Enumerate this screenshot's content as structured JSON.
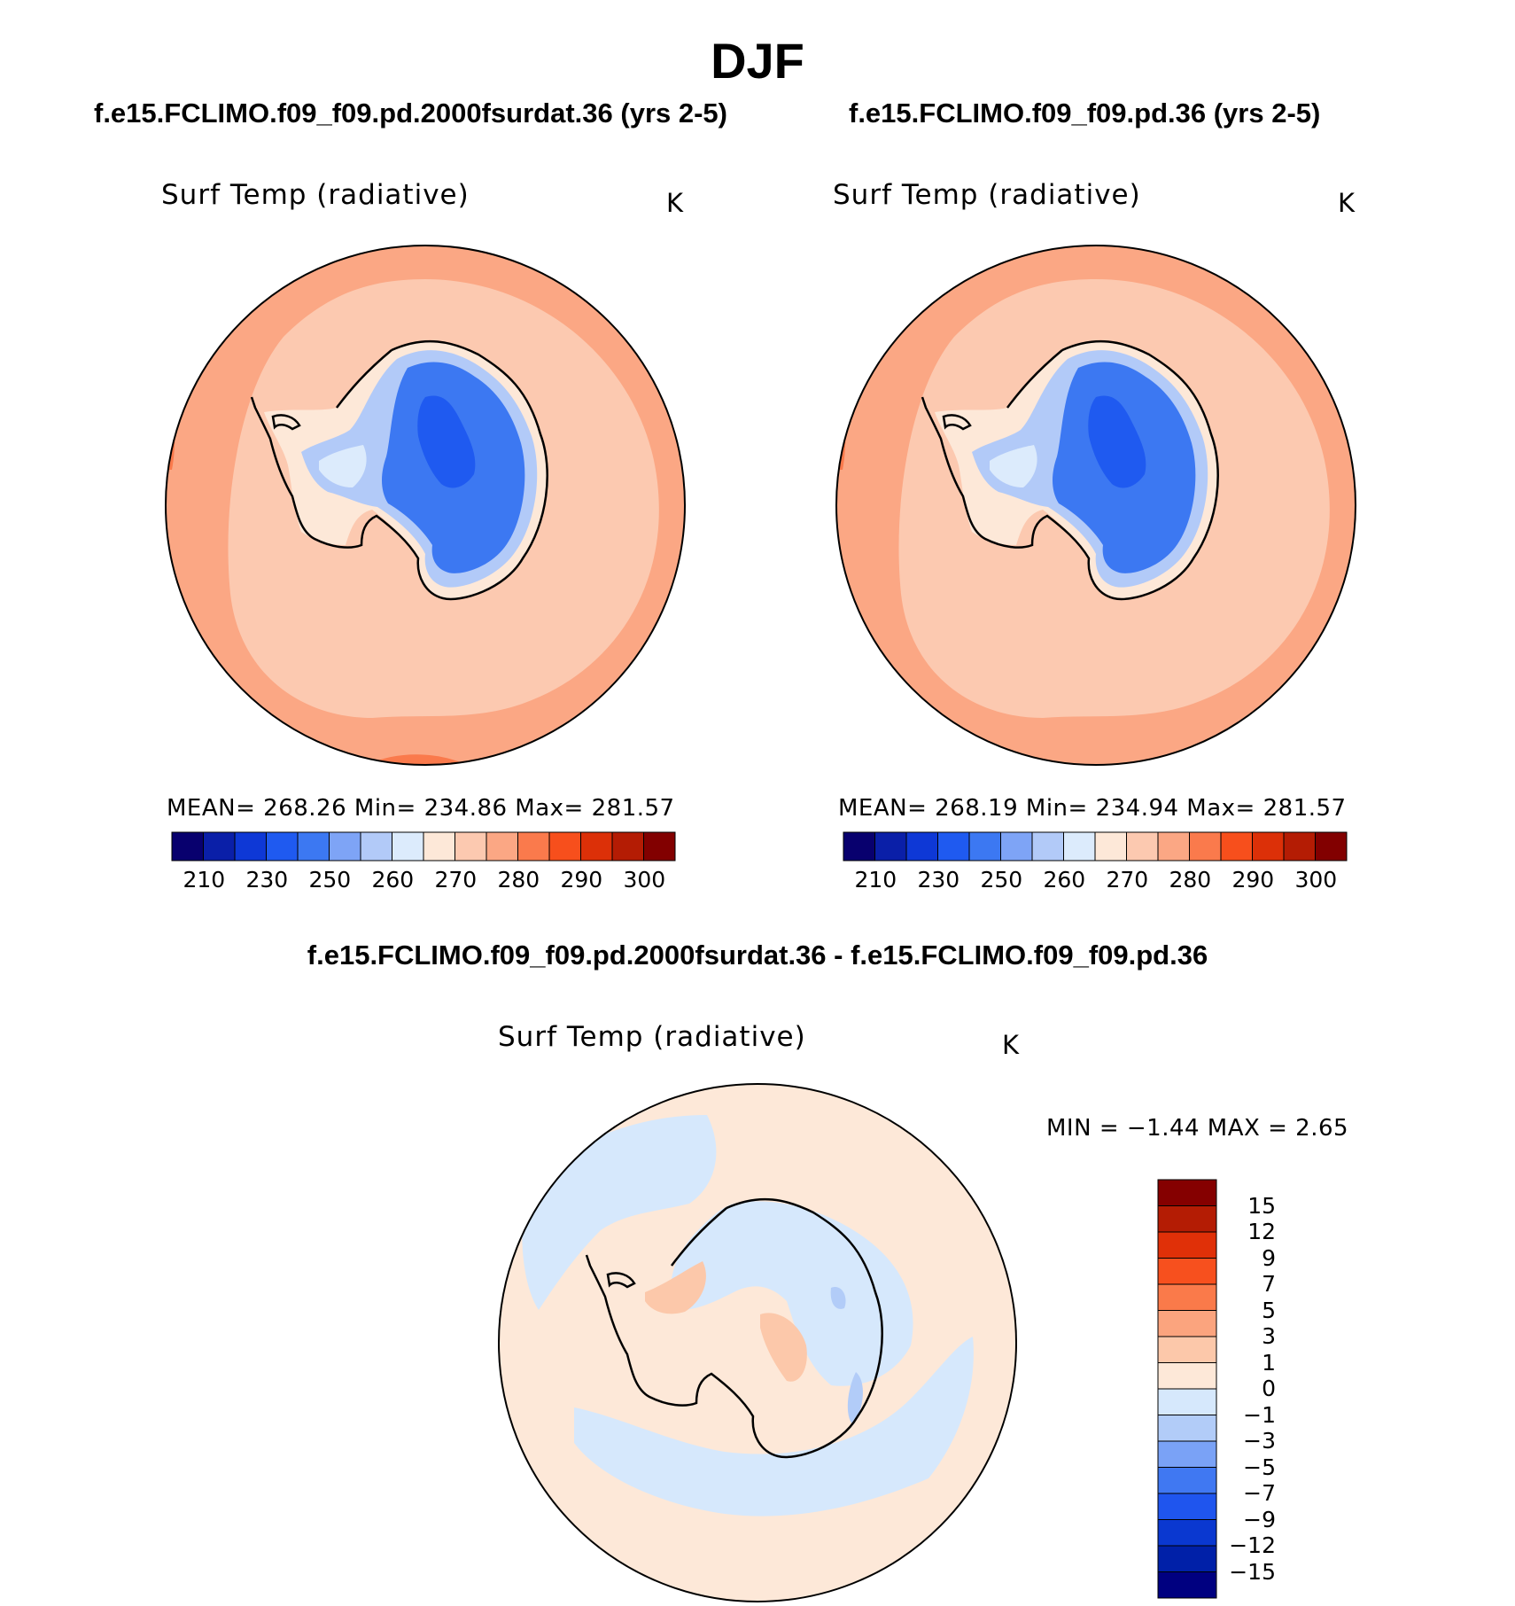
{
  "season_title": "DJF",
  "diff_title": "f.e15.FCLIMO.f09_f09.pd.2000fsurdat.36 - f.e15.FCLIMO.f09_f09.pd.36",
  "colors": {
    "abs_levels": [
      "#08006e",
      "#0a1fa8",
      "#0e38d6",
      "#1f5af0",
      "#3c78f2",
      "#7ea4f6",
      "#b2caf8",
      "#dcebfc",
      "#fde8d8",
      "#fcc9b0",
      "#fba784",
      "#fa7a4c",
      "#f74f1c",
      "#dc3008",
      "#b41c04",
      "#820000"
    ],
    "diff_levels": [
      "#000080",
      "#0020a8",
      "#0a38d0",
      "#1f55ee",
      "#4078f2",
      "#7aa2f6",
      "#b2ccf8",
      "#d6e8fc",
      "#fde8d8",
      "#fcc8aa",
      "#fba47e",
      "#fa7a4a",
      "#f7501e",
      "#e03008",
      "#b41c04",
      "#850000"
    ]
  },
  "chart_data": [
    {
      "type": "heatmap",
      "title": "f.e15.FCLIMO.f09_f09.pd.2000fsurdat.36 (yrs 2-5)",
      "variable": "Surf Temp (radiative)",
      "units": "K",
      "projection": "south polar stereographic",
      "stats": {
        "mean": "268.26",
        "min": "234.86",
        "max": "281.57"
      },
      "stats_text": "MEAN= 268.26   Min= 234.86   Max= 281.57",
      "colorbar": {
        "orientation": "horizontal",
        "levels": [
          210,
          220,
          230,
          240,
          250,
          255,
          260,
          265,
          270,
          275,
          280,
          285,
          290,
          295,
          300
        ],
        "tick_labels": [
          "210",
          "230",
          "250",
          "260",
          "270",
          "280",
          "290",
          "300"
        ]
      }
    },
    {
      "type": "heatmap",
      "title": "f.e15.FCLIMO.f09_f09.pd.36 (yrs 2-5)",
      "variable": "Surf Temp (radiative)",
      "units": "K",
      "projection": "south polar stereographic",
      "stats": {
        "mean": "268.19",
        "min": "234.94",
        "max": "281.57"
      },
      "stats_text": "MEAN= 268.19   Min= 234.94   Max= 281.57",
      "colorbar": {
        "orientation": "horizontal",
        "levels": [
          210,
          220,
          230,
          240,
          250,
          255,
          260,
          265,
          270,
          275,
          280,
          285,
          290,
          295,
          300
        ],
        "tick_labels": [
          "210",
          "230",
          "250",
          "260",
          "270",
          "280",
          "290",
          "300"
        ]
      }
    },
    {
      "type": "heatmap",
      "title": "f.e15.FCLIMO.f09_f09.pd.2000fsurdat.36 - f.e15.FCLIMO.f09_f09.pd.36",
      "variable": "Surf Temp (radiative)",
      "units": "K",
      "projection": "south polar stereographic",
      "stats": {
        "min": "−1.44",
        "max": "2.65"
      },
      "stats_text": "MIN =   −1.44 MAX =    2.65",
      "colorbar": {
        "orientation": "vertical",
        "levels": [
          -15,
          -12,
          -9,
          -7,
          -5,
          -3,
          -1,
          0,
          1,
          3,
          5,
          7,
          9,
          12,
          15
        ],
        "tick_labels": [
          "15",
          "12",
          "9",
          "7",
          "5",
          "3",
          "1",
          "0",
          "−1",
          "−3",
          "−5",
          "−7",
          "−9",
          "−12",
          "−15"
        ]
      }
    }
  ]
}
